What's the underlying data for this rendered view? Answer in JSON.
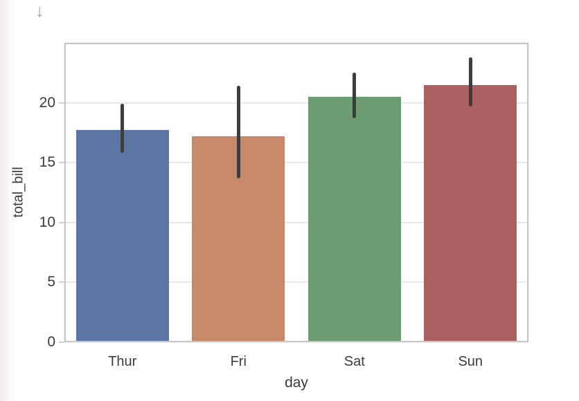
{
  "page": {
    "arrow_glyph": "↓"
  },
  "colors": {
    "background": "#ffffff",
    "plot_background": "#ffffff",
    "plot_border": "#c6c6c6",
    "gridline": "#e7e7e7",
    "text": "#3a3a3a",
    "arrow_icon": "#9c9c9c",
    "error_bar": "#3d3d3d"
  },
  "chart_data": {
    "type": "bar",
    "title": "",
    "xlabel": "day",
    "ylabel": "total_bill",
    "categories": [
      "Thur",
      "Fri",
      "Sat",
      "Sun"
    ],
    "values": [
      17.7,
      17.2,
      20.5,
      21.5
    ],
    "error_low": [
      15.8,
      13.7,
      18.7,
      19.7
    ],
    "error_high": [
      19.9,
      21.4,
      22.5,
      23.8
    ],
    "bar_colors": [
      "#5b76a4",
      "#c68a68",
      "#6b9c72",
      "#ab6162"
    ],
    "ylim": [
      0,
      25
    ],
    "yticks": [
      0,
      5,
      10,
      15,
      20
    ],
    "grid": true,
    "legend": false,
    "style": "seaborn-whitegrid"
  }
}
